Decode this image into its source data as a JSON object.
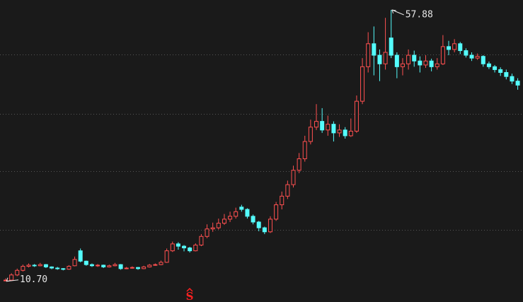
{
  "chart_data": {
    "type": "candlestick",
    "ylim": [
      7.1,
      59.6
    ],
    "gridlines": [
      50.1,
      39.8,
      29.8,
      19.6
    ],
    "up_color": "#ff5050",
    "down_color": "#54fcfc",
    "open": [
      10.8,
      10.9,
      11.8,
      12.6,
      13.3,
      13.5,
      13.4,
      13.6,
      13.2,
      13.0,
      12.9,
      12.8,
      13.4,
      16.0,
      14.2,
      13.6,
      13.4,
      13.5,
      13.2,
      13.4,
      13.6,
      12.9,
      13.0,
      13.1,
      12.9,
      13.2,
      13.5,
      13.6,
      14.0,
      16.0,
      17.2,
      16.8,
      16.5,
      16.0,
      17.0,
      18.5,
      19.8,
      20.0,
      20.8,
      21.5,
      22.0,
      23.6,
      23.2,
      22.0,
      21.0,
      20.0,
      19.3,
      21.5,
      24.0,
      25.5,
      27.5,
      30.0,
      32.0,
      35.0,
      37.5,
      38.5,
      37.0,
      38.0,
      36.5,
      37.0,
      36.0,
      36.8,
      42.0,
      48.0,
      52.0,
      50.0,
      48.5,
      53.0,
      50.0,
      48.0,
      48.5,
      50.0,
      49.0,
      48.3,
      49.0,
      48.0,
      48.5,
      51.5,
      51.0,
      52.0,
      50.8,
      50.0,
      49.5,
      49.8,
      48.5,
      48.0,
      47.5,
      47.0,
      46.3,
      45.5
    ],
    "high": [
      11.2,
      12.1,
      12.9,
      13.6,
      13.8,
      13.7,
      13.9,
      13.7,
      13.3,
      13.2,
      13.0,
      13.5,
      15.0,
      16.4,
      14.3,
      13.8,
      13.7,
      13.6,
      13.6,
      13.9,
      13.7,
      13.2,
      13.3,
      13.2,
      13.4,
      13.7,
      13.8,
      14.3,
      16.4,
      17.6,
      17.5,
      17.0,
      16.7,
      17.3,
      18.9,
      20.6,
      20.9,
      21.6,
      22.4,
      22.8,
      23.5,
      24.0,
      23.4,
      22.3,
      21.2,
      20.2,
      22.0,
      24.5,
      26.3,
      28.2,
      30.8,
      33.0,
      36.0,
      38.8,
      41.5,
      40.8,
      39.5,
      38.5,
      38.0,
      37.5,
      39.0,
      43.0,
      49.5,
      54.0,
      55.0,
      51.0,
      56.5,
      57.88,
      50.5,
      49.5,
      51.0,
      50.8,
      49.8,
      50.0,
      49.4,
      49.5,
      53.5,
      52.5,
      52.8,
      52.3,
      51.2,
      50.5,
      50.3,
      50.0,
      48.9,
      48.3,
      47.9,
      47.5,
      46.8,
      46.0
    ],
    "low": [
      10.7,
      10.8,
      11.6,
      12.4,
      13.1,
      13.2,
      13.3,
      13.0,
      12.8,
      12.7,
      12.6,
      12.7,
      13.3,
      14.0,
      13.4,
      13.2,
      13.2,
      13.0,
      13.1,
      13.3,
      12.7,
      12.8,
      12.9,
      12.7,
      12.8,
      13.1,
      13.4,
      13.5,
      13.9,
      15.8,
      16.2,
      15.9,
      15.7,
      15.9,
      16.8,
      18.2,
      19.3,
      19.7,
      20.5,
      21.0,
      21.6,
      22.8,
      21.6,
      20.6,
      19.4,
      18.9,
      19.1,
      21.2,
      23.2,
      25.0,
      27.0,
      29.5,
      31.5,
      34.5,
      37.0,
      36.5,
      36.0,
      35.0,
      35.8,
      35.5,
      35.8,
      36.5,
      41.5,
      47.0,
      46.5,
      45.5,
      47.5,
      49.5,
      46.0,
      46.5,
      47.5,
      48.0,
      47.0,
      47.8,
      47.2,
      47.5,
      48.3,
      50.0,
      50.5,
      50.2,
      49.6,
      49.0,
      49.2,
      48.0,
      47.6,
      47.0,
      46.4,
      45.8,
      45.0,
      44.0
    ],
    "close": [
      10.9,
      11.8,
      12.6,
      13.3,
      13.5,
      13.4,
      13.6,
      13.2,
      13.0,
      12.9,
      12.8,
      13.3,
      14.5,
      14.2,
      13.6,
      13.4,
      13.5,
      13.2,
      13.4,
      13.6,
      12.9,
      13.0,
      13.1,
      12.9,
      13.2,
      13.5,
      13.6,
      14.0,
      16.0,
      17.2,
      16.8,
      16.5,
      16.0,
      17.0,
      18.5,
      19.8,
      20.0,
      20.8,
      21.5,
      22.0,
      22.8,
      23.2,
      22.0,
      21.0,
      20.0,
      19.3,
      21.5,
      24.0,
      25.5,
      27.5,
      30.0,
      32.0,
      35.0,
      37.5,
      38.5,
      37.0,
      38.0,
      36.5,
      37.0,
      36.0,
      36.8,
      42.0,
      48.0,
      52.0,
      50.0,
      48.5,
      50.5,
      50.0,
      48.0,
      48.5,
      50.0,
      49.0,
      48.3,
      49.0,
      48.0,
      48.5,
      51.5,
      51.0,
      52.0,
      50.8,
      50.0,
      49.5,
      49.8,
      48.5,
      48.0,
      47.5,
      47.0,
      46.3,
      45.5,
      44.8
    ],
    "annotations": [
      {
        "value": 57.88,
        "label": "57.88"
      },
      {
        "value": 10.7,
        "label": "10.70"
      }
    ],
    "signal_label": "S"
  }
}
